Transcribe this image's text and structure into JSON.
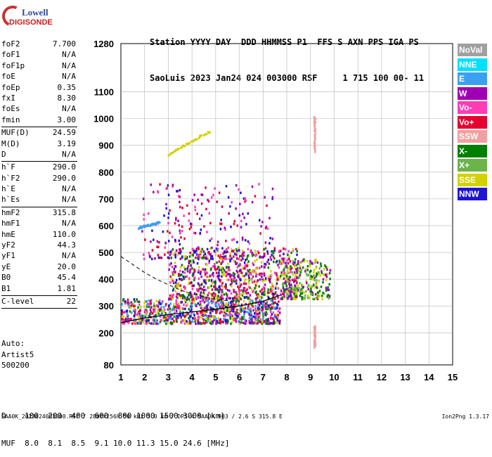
{
  "logo": {
    "line1": "Lowell",
    "line2": "DIGISONDE"
  },
  "header": {
    "line1": "Station YYYY DAY  DDD HHMMSS P1  FFS S AXN PPS IGA PS",
    "line2": "SaoLuis 2023 Jan24 024 003000 RSF     1 715 100 00- 11"
  },
  "params": [
    {
      "k": "foF2",
      "v": "7.700"
    },
    {
      "k": "foF1",
      "v": "N/A"
    },
    {
      "k": "foF1p",
      "v": "N/A"
    },
    {
      "k": "foE",
      "v": "N/A"
    },
    {
      "k": "foEp",
      "v": "0.35"
    },
    {
      "k": "fxI",
      "v": "8.30"
    },
    {
      "k": "foEs",
      "v": "N/A"
    },
    {
      "k": "fmin",
      "v": "3.00"
    },
    {
      "k": "MUF(D)",
      "v": "24.59"
    },
    {
      "k": "M(D)",
      "v": "3.19"
    },
    {
      "k": "D",
      "v": "N/A"
    },
    {
      "k": "h`F",
      "v": "290.0"
    },
    {
      "k": "h`F2",
      "v": "290.0"
    },
    {
      "k": "h`E",
      "v": "N/A"
    },
    {
      "k": "h`Es",
      "v": "N/A"
    },
    {
      "k": "hmF2",
      "v": "315.8"
    },
    {
      "k": "hmF1",
      "v": "N/A"
    },
    {
      "k": "hmE",
      "v": "110.0"
    },
    {
      "k": "yF2",
      "v": "44.3"
    },
    {
      "k": "yF1",
      "v": "N/A"
    },
    {
      "k": "yE",
      "v": "20.0"
    },
    {
      "k": "B0",
      "v": "45.4"
    },
    {
      "k": "B1",
      "v": "1.81"
    },
    {
      "k": "C-level",
      "v": "22"
    }
  ],
  "auto": {
    "line1": "Auto:",
    "line2": "Artist5",
    "line3": "500200"
  },
  "legend": [
    {
      "label": "NoVal",
      "color": "#a0a0a0"
    },
    {
      "label": "NNE",
      "color": "#00e0ff"
    },
    {
      "label": "E",
      "color": "#3ca0f0"
    },
    {
      "label": "W",
      "color": "#a000b4"
    },
    {
      "label": "Vo-",
      "color": "#ff3cb4"
    },
    {
      "label": "Vo+",
      "color": "#e60032"
    },
    {
      "label": "SSW",
      "color": "#f0a0a0"
    },
    {
      "label": "X-",
      "color": "#008000"
    },
    {
      "label": "X+",
      "color": "#6ab44a"
    },
    {
      "label": "SSE",
      "color": "#d2d200"
    },
    {
      "label": "NNW",
      "color": "#1e14d2"
    }
  ],
  "dmuf": {
    "line1": "D    100  200  400  600  800 1000 1500 3000 [km]",
    "line2": "MUF  8.0  8.1  8.5  9.1 10.0 11.3 15.0 24.6 [MHz]"
  },
  "footer": {
    "text": "SAA0K_2023024003000.RSF / 280fx256h 50 kHz 5.0 km / DPS-4 SAA0K 903 / 2.6 S 315.8 E",
    "version": "Ion2Png 1.3.17"
  },
  "chart_data": {
    "type": "scatter",
    "x_ticks": [
      1,
      2,
      3,
      4,
      5,
      6,
      7,
      8,
      9,
      10,
      11,
      12,
      13,
      14,
      15
    ],
    "y_ticks": [
      80,
      200,
      300,
      400,
      500,
      600,
      700,
      800,
      900,
      1000,
      1100,
      1280
    ],
    "xlim": [
      1,
      15
    ],
    "ylim": [
      80,
      1280
    ],
    "grid": true,
    "trace_curve": [
      [
        1.0,
        238
      ],
      [
        2.0,
        255
      ],
      [
        3.0,
        268
      ],
      [
        4.0,
        278
      ],
      [
        5.0,
        288
      ],
      [
        6.0,
        300
      ],
      [
        7.0,
        318
      ],
      [
        7.7,
        340
      ]
    ],
    "dashed_curve": [
      [
        1.0,
        485
      ],
      [
        1.5,
        455
      ],
      [
        2.0,
        425
      ],
      [
        2.5,
        400
      ],
      [
        3.0,
        380
      ],
      [
        3.5,
        360
      ],
      [
        4.0,
        345
      ],
      [
        4.5,
        335
      ],
      [
        5.0,
        325
      ],
      [
        6.0,
        315
      ]
    ],
    "echo_clusters": [
      {
        "x": [
          1.0,
          7.7
        ],
        "y": [
          238,
          330
        ],
        "density": "high",
        "colors": [
          "#a000b4",
          "#1e14d2",
          "#d2d200",
          "#e60032",
          "#ff3cb4",
          "#008000",
          "#3ca0f0"
        ]
      },
      {
        "x": [
          3.0,
          8.4
        ],
        "y": [
          330,
          520
        ],
        "density": "high",
        "colors": [
          "#a000b4",
          "#1e14d2",
          "#ff3cb4",
          "#e60032",
          "#d2d200",
          "#008000"
        ]
      },
      {
        "x": [
          7.8,
          9.8
        ],
        "y": [
          330,
          480
        ],
        "density": "medium",
        "colors": [
          "#008000",
          "#6ab44a",
          "#a000b4",
          "#d2d200"
        ]
      },
      {
        "x": [
          1.8,
          7.4
        ],
        "y": [
          480,
          760
        ],
        "density": "low",
        "colors": [
          "#a000b4",
          "#1e14d2",
          "#e60032",
          "#ff3cb4"
        ]
      }
    ],
    "line_features": [
      {
        "from": [
          3.0,
          870
        ],
        "to": [
          4.7,
          955
        ],
        "color": "#d2d200"
      },
      {
        "from": [
          1.7,
          595
        ],
        "to": [
          2.6,
          615
        ],
        "color": "#3ca0f0"
      },
      {
        "from": [
          9.15,
          1010
        ],
        "to": [
          9.15,
          880
        ],
        "color": "#f0a0a0"
      },
      {
        "from": [
          9.15,
          230
        ],
        "to": [
          9.15,
          150
        ],
        "color": "#f0a0a0"
      }
    ]
  }
}
